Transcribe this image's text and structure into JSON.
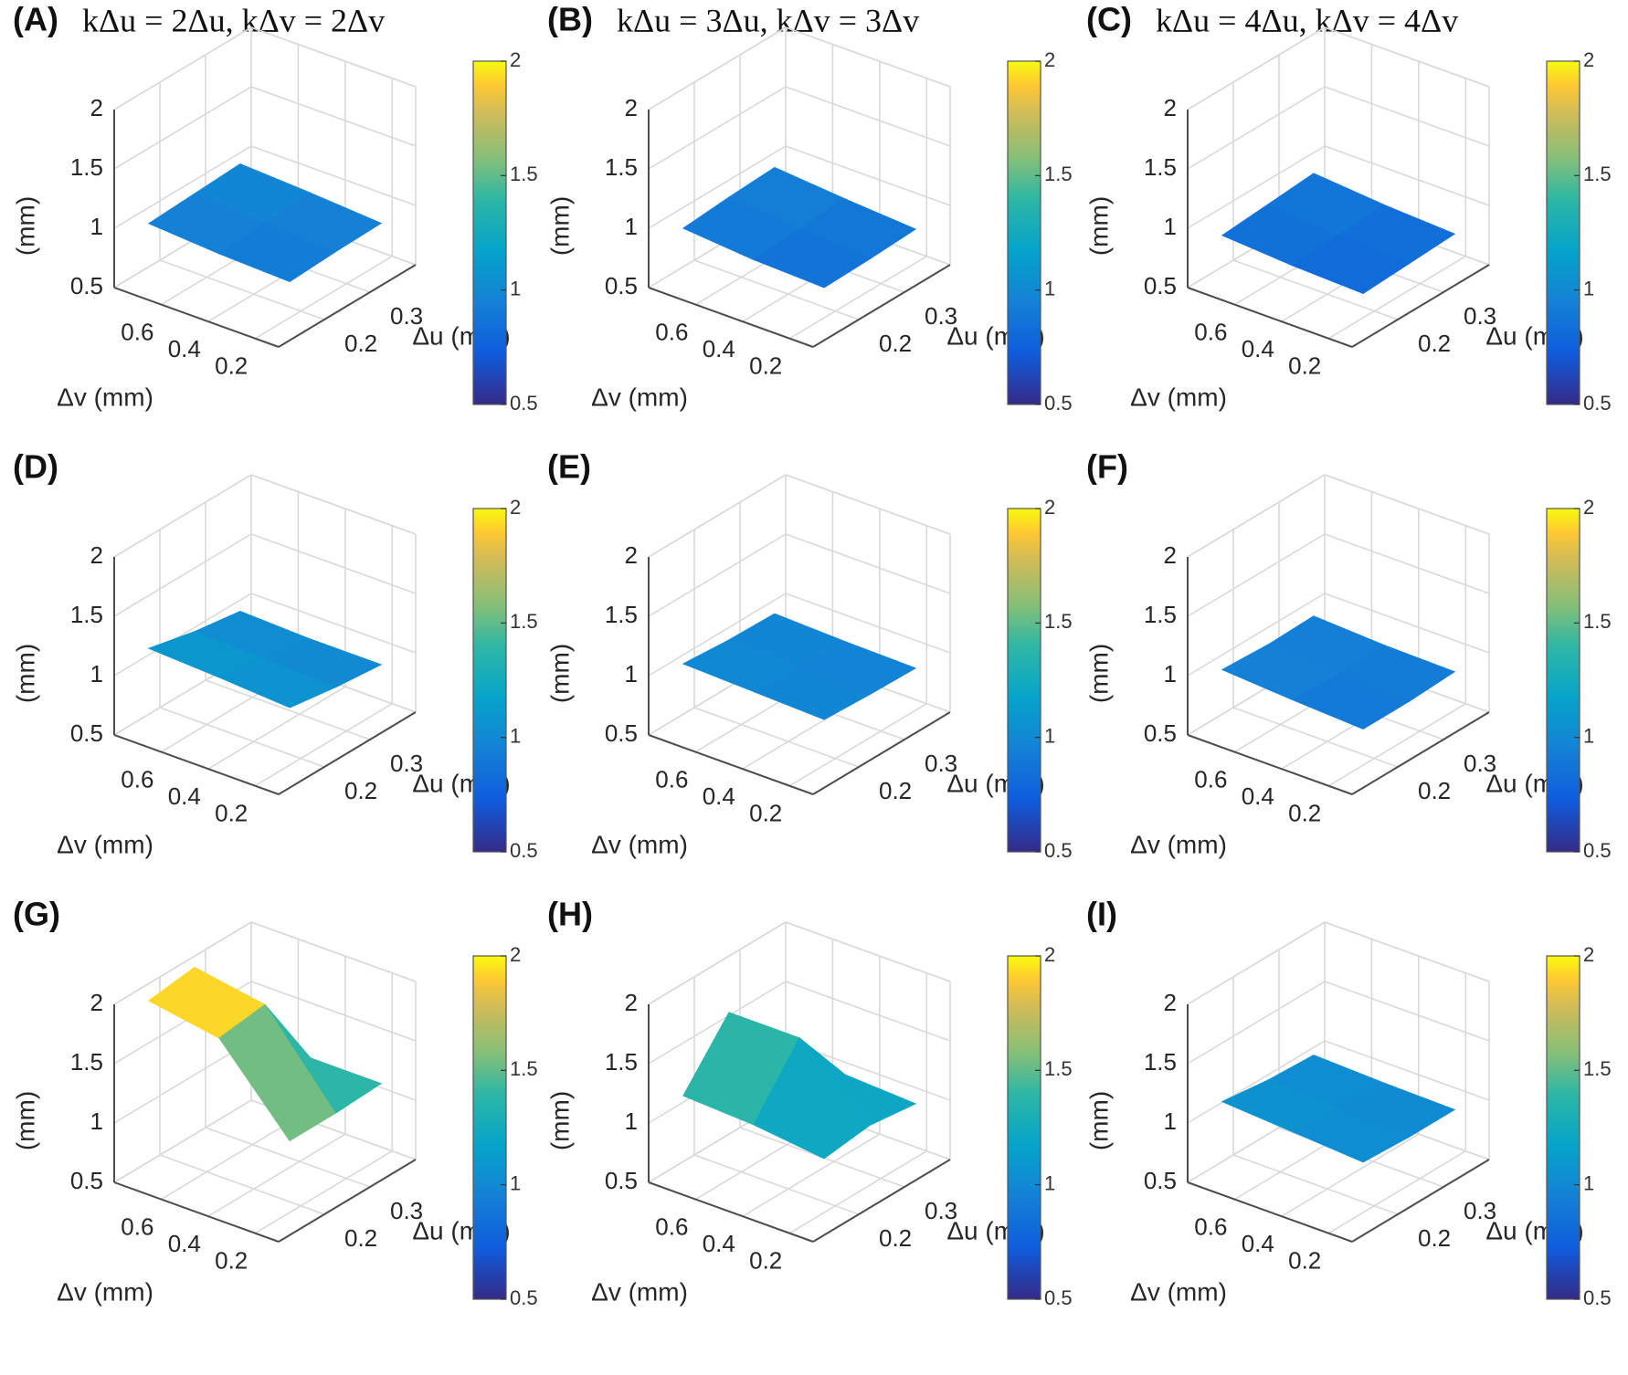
{
  "colors": {
    "background": "#ffffff",
    "grid": "#d9d9d9",
    "colormap": "parula"
  },
  "figure": {
    "rows": 3,
    "cols": 3
  },
  "chart_data": [
    {
      "panel": "(A)",
      "title": "kΔu = 2Δu, kΔv = 2Δv",
      "type": "surface",
      "xlabel": "Δu (mm)",
      "ylabel": "Δv (mm)",
      "zlabel": "(mm)",
      "xticks": [
        "0.2",
        "0.3"
      ],
      "yticks": [
        "0.6",
        "0.4",
        "0.2"
      ],
      "zticks": [
        "0.5",
        "1",
        "1.5",
        "2"
      ],
      "zlim": [
        0.5,
        2.0
      ],
      "clim": [
        0.5,
        2.0
      ],
      "colorbar_ticks": [
        "0.5",
        "1",
        "1.5",
        "2"
      ],
      "x": [
        0.15,
        0.25,
        0.35
      ],
      "y": [
        0.15,
        0.45,
        0.75
      ],
      "z": [
        [
          0.9,
          0.92,
          0.93
        ],
        [
          0.92,
          0.95,
          0.97
        ],
        [
          0.96,
          0.98,
          1.0
        ]
      ]
    },
    {
      "panel": "(B)",
      "title": "kΔu = 3Δu, kΔv = 3Δv",
      "type": "surface",
      "xlabel": "Δu (mm)",
      "ylabel": "Δv (mm)",
      "zlabel": "(mm)",
      "xticks": [
        "0.2",
        "0.3"
      ],
      "yticks": [
        "0.6",
        "0.4",
        "0.2"
      ],
      "zticks": [
        "0.5",
        "1",
        "1.5",
        "2"
      ],
      "zlim": [
        0.5,
        2.0
      ],
      "clim": [
        0.5,
        2.0
      ],
      "colorbar_ticks": [
        "0.5",
        "1",
        "1.5",
        "2"
      ],
      "x": [
        0.15,
        0.25,
        0.35
      ],
      "y": [
        0.15,
        0.45,
        0.75
      ],
      "z": [
        [
          0.85,
          0.86,
          0.88
        ],
        [
          0.87,
          0.89,
          0.92
        ],
        [
          0.92,
          0.95,
          0.97
        ]
      ]
    },
    {
      "panel": "(C)",
      "title": "kΔu = 4Δu, kΔv = 4Δv",
      "type": "surface",
      "xlabel": "Δu (mm)",
      "ylabel": "Δv (mm)",
      "zlabel": "(mm)",
      "xticks": [
        "0.2",
        "0.3"
      ],
      "yticks": [
        "0.6",
        "0.4",
        "0.2"
      ],
      "zticks": [
        "0.5",
        "1",
        "1.5",
        "2"
      ],
      "zlim": [
        0.5,
        2.0
      ],
      "clim": [
        0.5,
        2.0
      ],
      "colorbar_ticks": [
        "0.5",
        "1",
        "1.5",
        "2"
      ],
      "x": [
        0.15,
        0.25,
        0.35
      ],
      "y": [
        0.15,
        0.45,
        0.75
      ],
      "z": [
        [
          0.8,
          0.82,
          0.84
        ],
        [
          0.82,
          0.84,
          0.87
        ],
        [
          0.86,
          0.89,
          0.92
        ]
      ]
    },
    {
      "panel": "(D)",
      "title": "",
      "type": "surface",
      "xlabel": "Δu (mm)",
      "ylabel": "Δv (mm)",
      "zlabel": "(mm)",
      "xticks": [
        "0.2",
        "0.3"
      ],
      "yticks": [
        "0.6",
        "0.4",
        "0.2"
      ],
      "zticks": [
        "0.5",
        "1",
        "1.5",
        "2"
      ],
      "zlim": [
        0.5,
        2.0
      ],
      "clim": [
        0.5,
        2.0
      ],
      "colorbar_ticks": [
        "0.5",
        "1",
        "1.5",
        "2"
      ],
      "x": [
        0.15,
        0.25,
        0.35
      ],
      "y": [
        0.15,
        0.45,
        0.75
      ],
      "z": [
        [
          1.08,
          1.02,
          0.98
        ],
        [
          1.12,
          1.04,
          0.98
        ],
        [
          1.15,
          1.06,
          1.0
        ]
      ]
    },
    {
      "panel": "(E)",
      "title": "",
      "type": "surface",
      "xlabel": "Δu (mm)",
      "ylabel": "Δv (mm)",
      "zlabel": "(mm)",
      "xticks": [
        "0.2",
        "0.3"
      ],
      "yticks": [
        "0.6",
        "0.4",
        "0.2"
      ],
      "zticks": [
        "0.5",
        "1",
        "1.5",
        "2"
      ],
      "zlim": [
        0.5,
        2.0
      ],
      "clim": [
        0.5,
        2.0
      ],
      "colorbar_ticks": [
        "0.5",
        "1",
        "1.5",
        "2"
      ],
      "x": [
        0.15,
        0.25,
        0.35
      ],
      "y": [
        0.15,
        0.45,
        0.75
      ],
      "z": [
        [
          0.98,
          0.96,
          0.95
        ],
        [
          1.0,
          0.97,
          0.96
        ],
        [
          1.02,
          0.99,
          0.98
        ]
      ]
    },
    {
      "panel": "(F)",
      "title": "",
      "type": "surface",
      "xlabel": "Δu (mm)",
      "ylabel": "Δv (mm)",
      "zlabel": "(mm)",
      "xticks": [
        "0.2",
        "0.3"
      ],
      "yticks": [
        "0.6",
        "0.4",
        "0.2"
      ],
      "zticks": [
        "0.5",
        "1",
        "1.5",
        "2"
      ],
      "zlim": [
        0.5,
        2.0
      ],
      "clim": [
        0.5,
        2.0
      ],
      "colorbar_ticks": [
        "0.5",
        "1",
        "1.5",
        "2"
      ],
      "x": [
        0.15,
        0.25,
        0.35
      ],
      "y": [
        0.15,
        0.45,
        0.75
      ],
      "z": [
        [
          0.9,
          0.9,
          0.92
        ],
        [
          0.93,
          0.92,
          0.93
        ],
        [
          0.97,
          0.95,
          0.96
        ]
      ]
    },
    {
      "panel": "(G)",
      "title": "",
      "type": "surface",
      "xlabel": "Δu (mm)",
      "ylabel": "Δv (mm)",
      "zlabel": "(mm)",
      "xticks": [
        "0.2",
        "0.3"
      ],
      "yticks": [
        "0.6",
        "0.4",
        "0.2"
      ],
      "zticks": [
        "0.5",
        "1",
        "1.5",
        "2"
      ],
      "zlim": [
        0.5,
        2.0
      ],
      "clim": [
        0.5,
        2.0
      ],
      "colorbar_ticks": [
        "0.5",
        "1",
        "1.5",
        "2"
      ],
      "x": [
        0.15,
        0.25,
        0.35
      ],
      "y": [
        0.15,
        0.45,
        0.75
      ],
      "z": [
        [
          1.2,
          1.2,
          1.22
        ],
        [
          1.85,
          1.9,
          1.22
        ],
        [
          1.95,
          2.0,
          1.25
        ]
      ]
    },
    {
      "panel": "(H)",
      "title": "",
      "type": "surface",
      "xlabel": "Δu (mm)",
      "ylabel": "Δv (mm)",
      "zlabel": "(mm)",
      "xticks": [
        "0.2",
        "0.3"
      ],
      "yticks": [
        "0.6",
        "0.4",
        "0.2"
      ],
      "zticks": [
        "0.5",
        "1",
        "1.5",
        "2"
      ],
      "zlim": [
        0.5,
        2.0
      ],
      "clim": [
        0.5,
        2.0
      ],
      "colorbar_ticks": [
        "0.5",
        "1",
        "1.5",
        "2"
      ],
      "x": [
        0.15,
        0.25,
        0.35
      ],
      "y": [
        0.15,
        0.45,
        0.75
      ],
      "z": [
        [
          1.05,
          1.1,
          1.05
        ],
        [
          1.12,
          1.62,
          1.08
        ],
        [
          1.15,
          1.62,
          1.1
        ]
      ]
    },
    {
      "panel": "(I)",
      "title": "",
      "type": "surface",
      "xlabel": "Δu (mm)",
      "ylabel": "Δv (mm)",
      "zlabel": "(mm)",
      "xticks": [
        "0.2",
        "0.3"
      ],
      "yticks": [
        "0.6",
        "0.4",
        "0.2"
      ],
      "zticks": [
        "0.5",
        "1",
        "1.5",
        "2"
      ],
      "zlim": [
        0.5,
        2.0
      ],
      "clim": [
        0.5,
        2.0
      ],
      "colorbar_ticks": [
        "0.5",
        "1",
        "1.5",
        "2"
      ],
      "x": [
        0.15,
        0.25,
        0.35
      ],
      "y": [
        0.15,
        0.45,
        0.75
      ],
      "z": [
        [
          1.02,
          1.0,
          1.0
        ],
        [
          1.06,
          1.02,
          1.01
        ],
        [
          1.1,
          1.05,
          1.03
        ]
      ]
    }
  ]
}
